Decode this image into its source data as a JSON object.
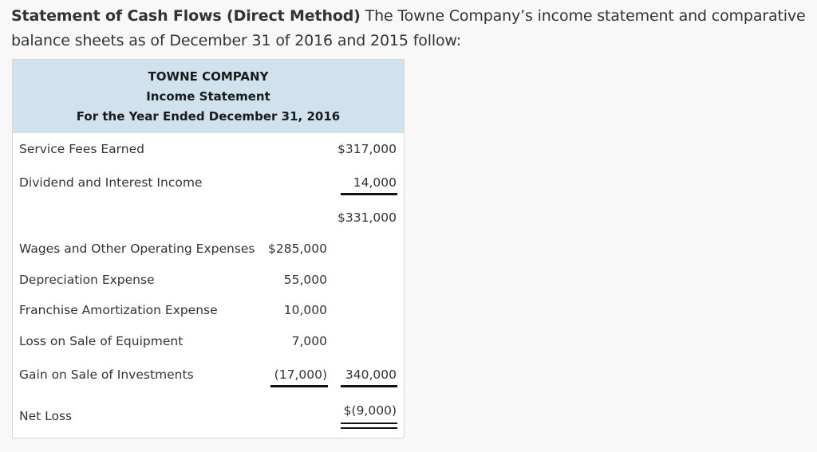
{
  "intro": {
    "bold": "Statement of Cash Flows (Direct Method)",
    "text": " The Towne Company’s income statement and comparative balance sheets as of December 31 of 2016 and 2015 follow:"
  },
  "statement": {
    "company": "TOWNE COMPANY",
    "title": "Income Statement",
    "period": "For the Year Ended December 31, 2016",
    "rows": [
      {
        "label": "Service Fees Earned",
        "col1": "",
        "col2": "$317,000"
      },
      {
        "label": "Dividend and Interest Income",
        "col1": "",
        "col2": "14,000"
      },
      {
        "label": "",
        "col1": "",
        "col2": "$331,000"
      },
      {
        "label": "Wages and Other Operating Expenses",
        "col1": "$285,000",
        "col2": ""
      },
      {
        "label": "Depreciation Expense",
        "col1": "55,000",
        "col2": ""
      },
      {
        "label": "Franchise Amortization Expense",
        "col1": "10,000",
        "col2": ""
      },
      {
        "label": "Loss on Sale of Equipment",
        "col1": "7,000",
        "col2": ""
      },
      {
        "label": "Gain on Sale of Investments",
        "col1": "(17,000)",
        "col2": "340,000"
      },
      {
        "label": "Net Loss",
        "col1": "",
        "col2": "$(9,000)"
      }
    ]
  }
}
